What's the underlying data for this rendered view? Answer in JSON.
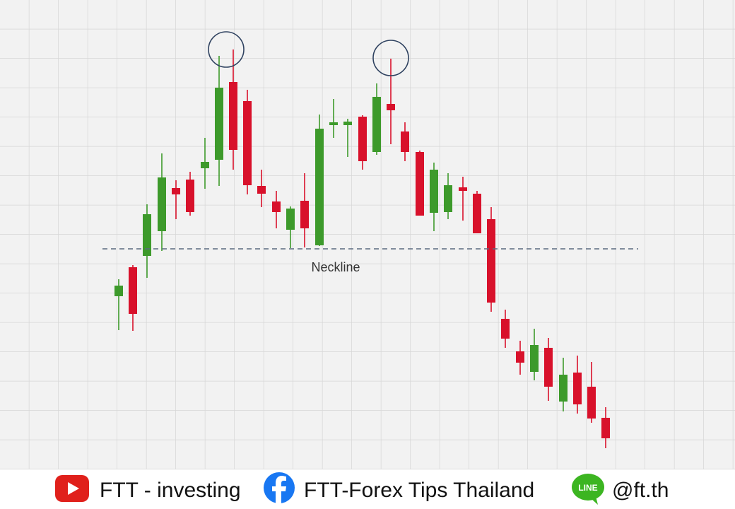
{
  "annotation": "Neckline",
  "footer": {
    "youtube": "FTT - investing",
    "facebook": "FTT-Forex Tips Thailand",
    "line_icon": "LINE",
    "line": "@ft.th"
  }
}
